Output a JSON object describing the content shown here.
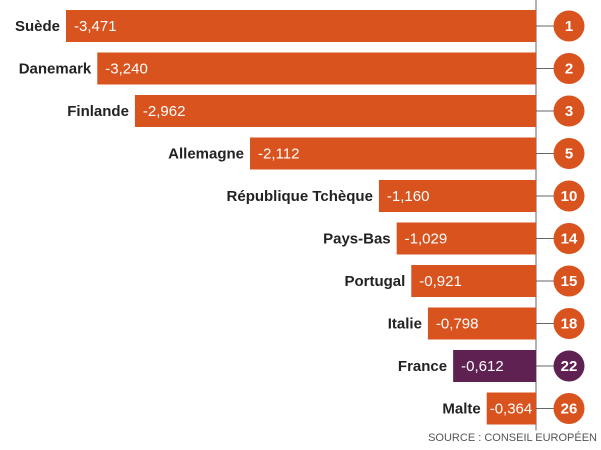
{
  "chart_data": {
    "type": "bar",
    "orientation": "horizontal",
    "categories": [
      "Suède",
      "Danemark",
      "Finlande",
      "Allemagne",
      "République Tchèque",
      "Pays-Bas",
      "Portugal",
      "Italie",
      "France",
      "Malte"
    ],
    "values": [
      -3.471,
      -3.24,
      -2.962,
      -2.112,
      -1.16,
      -1.029,
      -0.921,
      -0.798,
      -0.612,
      -0.364
    ],
    "value_labels": [
      "-3,471",
      "-3,240",
      "-2,962",
      "-2,112",
      "-1,160",
      "-1,029",
      "-0,921",
      "-0,798",
      "-0,612",
      "-0,364"
    ],
    "ranks": [
      "1",
      "2",
      "3",
      "5",
      "10",
      "14",
      "15",
      "18",
      "22",
      "26"
    ],
    "highlight": "France",
    "xlim": [
      -3.471,
      0
    ],
    "grid": false,
    "legend": "none"
  },
  "colors": {
    "bar": "#d9531e",
    "highlight": "#5e2152",
    "axis": "#666666",
    "label": "#222222"
  },
  "source": "SOURCE : CONSEIL EUROPÉEN"
}
